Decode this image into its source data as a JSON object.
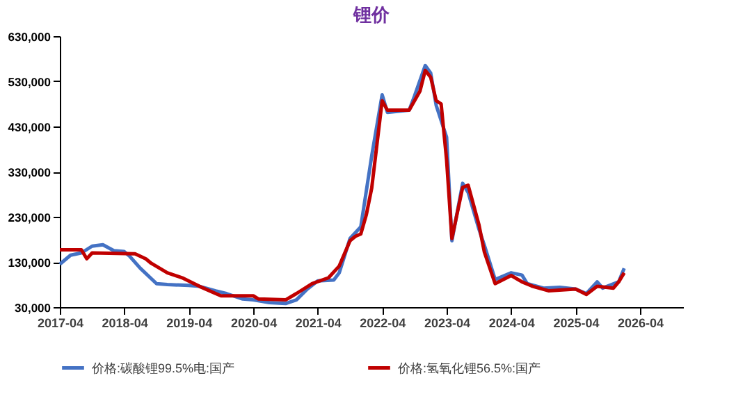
{
  "chart_data": {
    "type": "line",
    "title": "锂价",
    "xlim": [
      "2017-04",
      "2026-12"
    ],
    "xticks": [
      "2017-04",
      "2018-04",
      "2019-04",
      "2020-04",
      "2021-04",
      "2022-04",
      "2023-04",
      "2024-04",
      "2025-04",
      "2026-04"
    ],
    "ylim": [
      30000,
      630000
    ],
    "yticks": [
      {
        "value": 30000,
        "label": "30,000"
      },
      {
        "value": 130000,
        "label": "130,000"
      },
      {
        "value": 230000,
        "label": "230,000"
      },
      {
        "value": 330000,
        "label": "330,000"
      },
      {
        "value": 430000,
        "label": "430,000"
      },
      {
        "value": 530000,
        "label": "530,000"
      },
      {
        "value": 630000,
        "label": "630,000"
      }
    ],
    "grid": false,
    "legend": "bottom",
    "line_style": "solid",
    "marker": "none",
    "series": [
      {
        "name": "价格:碳酸锂99.5%电:国产",
        "color": "#4472c4",
        "x": [
          "2017-04",
          "2017-06",
          "2017-08",
          "2017-10",
          "2017-12",
          "2018-02",
          "2018-04",
          "2018-05",
          "2018-07",
          "2018-10",
          "2018-12",
          "2019-04",
          "2019-06",
          "2019-09",
          "2019-11",
          "2020-02",
          "2020-04",
          "2020-07",
          "2020-10",
          "2020-12",
          "2021-02",
          "2021-04",
          "2021-07",
          "2021-08",
          "2021-10",
          "2021-11",
          "2021-12",
          "2022-02",
          "2022-04",
          "2022-05",
          "2022-09",
          "2022-10",
          "2022-12",
          "2023-01",
          "2023-02",
          "2023-04",
          "2023-05",
          "2023-07",
          "2023-08",
          "2023-10",
          "2023-11",
          "2024-01",
          "2024-04",
          "2024-06",
          "2024-07",
          "2024-10",
          "2025-01",
          "2025-04",
          "2025-06",
          "2025-08",
          "2025-09",
          "2025-12",
          "2026-01"
        ],
        "values": [
          125000,
          145000,
          150000,
          165000,
          168000,
          155000,
          153000,
          143000,
          116000,
          82000,
          80000,
          78000,
          76000,
          66000,
          60000,
          48000,
          46000,
          40000,
          38000,
          46000,
          70000,
          88000,
          90000,
          106000,
          182000,
          195000,
          208000,
          365000,
          500000,
          461000,
          466000,
          497000,
          565000,
          548000,
          477000,
          406000,
          177000,
          304000,
          284000,
          203000,
          167000,
          91000,
          106000,
          101000,
          82000,
          72000,
          74000,
          70000,
          60000,
          86000,
          72000,
          86000,
          116000
        ]
      },
      {
        "name": "价格:氢氧化锂56.5%:国产",
        "color": "#c00000",
        "x": [
          "2017-04",
          "2017-08",
          "2017-09",
          "2017-10",
          "2018-06",
          "2018-08",
          "2018-09",
          "2018-12",
          "2019-03",
          "2019-06",
          "2019-09",
          "2019-10",
          "2020-04",
          "2020-05",
          "2020-10",
          "2020-12",
          "2021-03",
          "2021-06",
          "2021-08",
          "2021-10",
          "2021-11",
          "2021-12",
          "2022-01",
          "2022-02",
          "2022-04",
          "2022-05",
          "2022-09",
          "2022-11",
          "2022-12",
          "2023-01",
          "2023-02",
          "2023-03",
          "2023-04",
          "2023-05",
          "2023-07",
          "2023-08",
          "2023-10",
          "2023-11",
          "2024-01",
          "2024-04",
          "2024-06",
          "2024-08",
          "2024-11",
          "2025-04",
          "2025-06",
          "2025-08",
          "2025-11",
          "2025-12",
          "2026-01"
        ],
        "values": [
          157000,
          157000,
          137000,
          150000,
          148000,
          137000,
          127000,
          106000,
          94000,
          76000,
          60000,
          55000,
          55000,
          48000,
          46000,
          60000,
          82000,
          95000,
          121000,
          177000,
          187000,
          192000,
          234000,
          294000,
          487000,
          466000,
          466000,
          508000,
          554000,
          539000,
          487000,
          480000,
          356000,
          182000,
          295000,
          300000,
          213000,
          152000,
          82000,
          100000,
          86000,
          76000,
          66000,
          70000,
          58000,
          76000,
          72000,
          86000,
          106000
        ]
      }
    ]
  }
}
